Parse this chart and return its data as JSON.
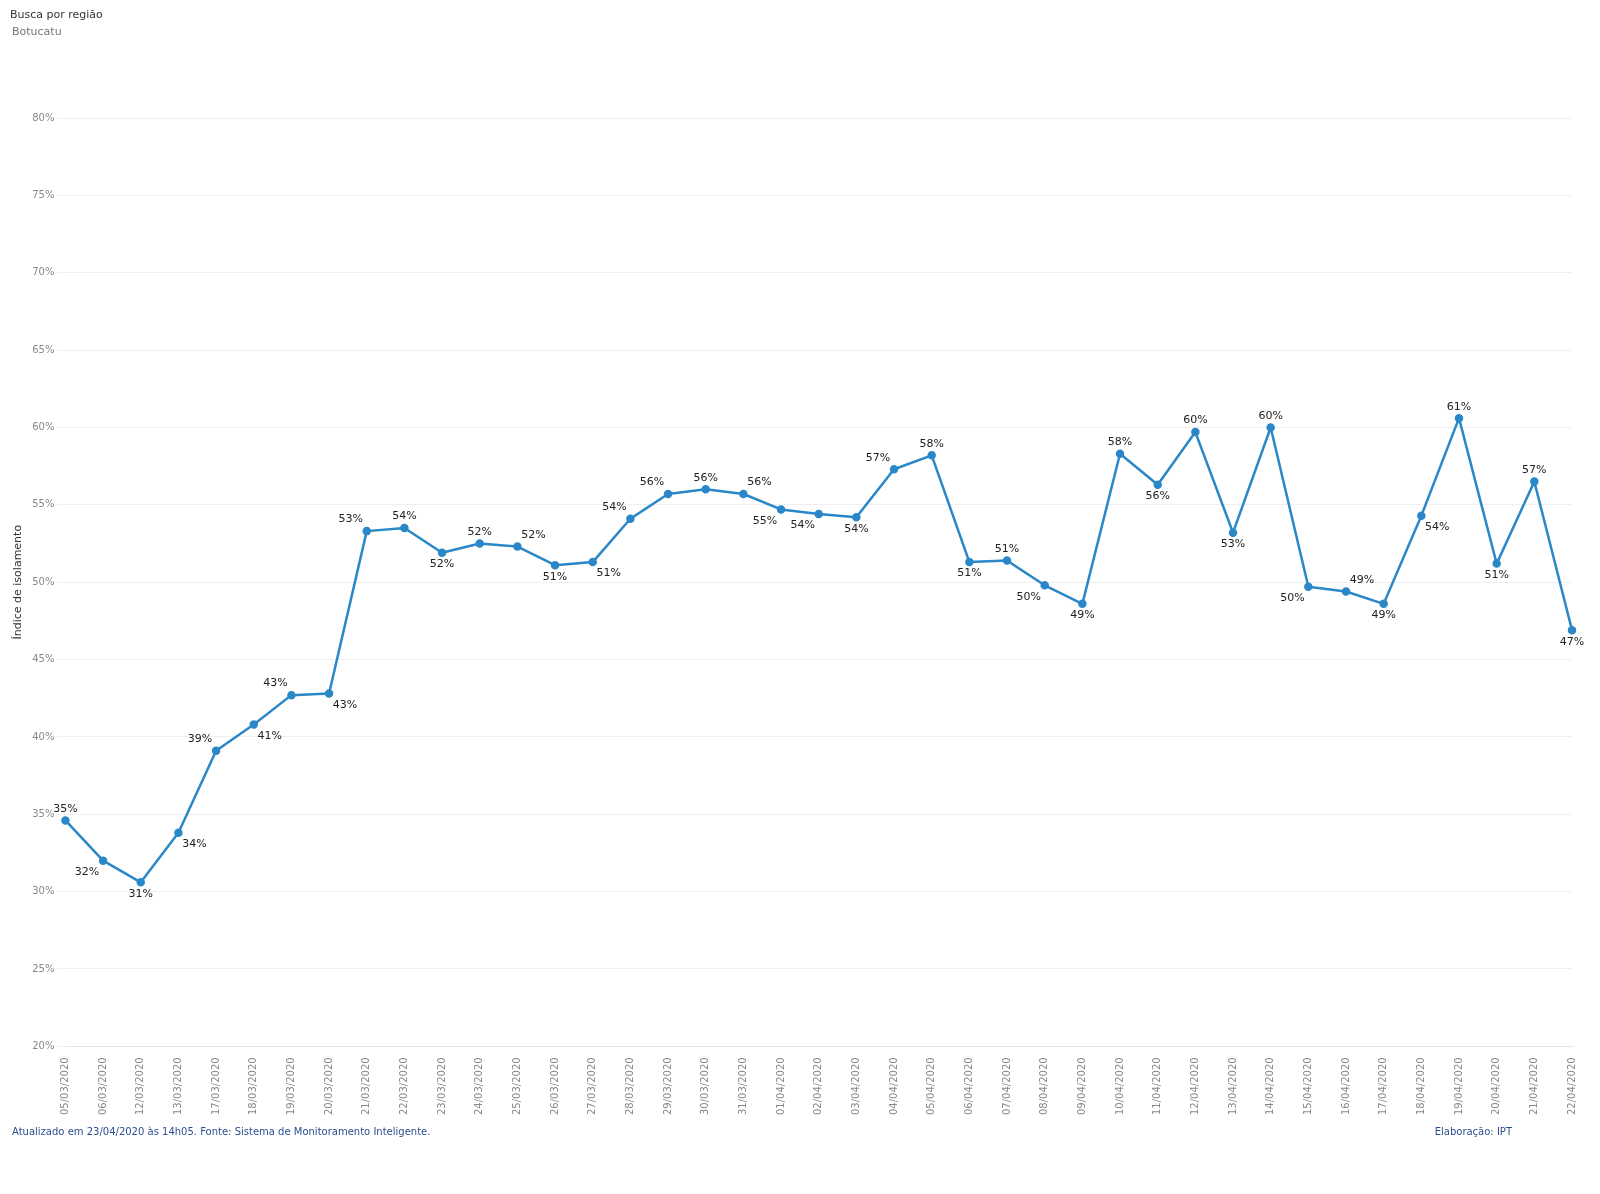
{
  "chart_data": {
    "type": "line",
    "title": "Busca por região",
    "subtitle": "Botucatu",
    "ylabel": "Índice de isolamento",
    "annotations": [
      "Atualizado em 23/04/2020 às 14h05. Fonte: Sistema de Monitoramento Inteligente.",
      "Elaboração: IPT"
    ],
    "categories": [
      "05/03/2020",
      "06/03/2020",
      "12/03/2020",
      "13/03/2020",
      "17/03/2020",
      "18/03/2020",
      "19/03/2020",
      "20/03/2020",
      "21/03/2020",
      "22/03/2020",
      "23/03/2020",
      "24/03/2020",
      "25/03/2020",
      "26/03/2020",
      "27/03/2020",
      "28/03/2020",
      "29/03/2020",
      "30/03/2020",
      "31/03/2020",
      "01/04/2020",
      "02/04/2020",
      "03/04/2020",
      "04/04/2020",
      "05/04/2020",
      "06/04/2020",
      "07/04/2020",
      "08/04/2020",
      "09/04/2020",
      "10/04/2020",
      "11/04/2020",
      "12/04/2020",
      "13/04/2020",
      "14/04/2020",
      "15/04/2020",
      "16/04/2020",
      "17/04/2020",
      "18/04/2020",
      "19/04/2020",
      "20/04/2020",
      "21/04/2020",
      "22/04/2020"
    ],
    "series": [
      {
        "color": "#2a87c8",
        "values": [
          34.6,
          32.0,
          30.6,
          33.8,
          39.1,
          40.8,
          42.7,
          42.8,
          53.3,
          53.5,
          51.9,
          52.5,
          52.3,
          51.1,
          51.3,
          54.1,
          55.7,
          56.0,
          55.7,
          54.7,
          54.4,
          54.2,
          57.3,
          58.2,
          51.3,
          51.4,
          49.8,
          48.6,
          58.3,
          56.3,
          59.7,
          53.2,
          60.0,
          49.7,
          49.4,
          48.6,
          54.3,
          60.6,
          51.2,
          56.5,
          46.9
        ],
        "value_labels": [
          "35%",
          "32%",
          "31%",
          "34%",
          "39%",
          "41%",
          "43%",
          "43%",
          "53%",
          "54%",
          "52%",
          "52%",
          "52%",
          "51%",
          "51%",
          "54%",
          "56%",
          "56%",
          "56%",
          "55%",
          "54%",
          "54%",
          "57%",
          "58%",
          "51%",
          "51%",
          "50%",
          "49%",
          "58%",
          "56%",
          "60%",
          "53%",
          "60%",
          "50%",
          "49%",
          "49%",
          "54%",
          "61%",
          "51%",
          "57%",
          "47%"
        ]
      }
    ],
    "ylim": [
      20,
      80
    ],
    "yticks": [
      {
        "value": 20,
        "label": "20%"
      },
      {
        "value": 25,
        "label": "25%"
      },
      {
        "value": 30,
        "label": "30%"
      },
      {
        "value": 35,
        "label": "35%"
      },
      {
        "value": 40,
        "label": "40%"
      },
      {
        "value": 45,
        "label": "45%"
      },
      {
        "value": 50,
        "label": "50%"
      },
      {
        "value": 55,
        "label": "55%"
      },
      {
        "value": 60,
        "label": "60%"
      },
      {
        "value": 65,
        "label": "65%"
      },
      {
        "value": 70,
        "label": "70%"
      },
      {
        "value": 75,
        "label": "75%"
      },
      {
        "value": 80,
        "label": "80%"
      }
    ],
    "grid": "y",
    "legend": false,
    "marker": "circle",
    "line_style": "solid"
  }
}
